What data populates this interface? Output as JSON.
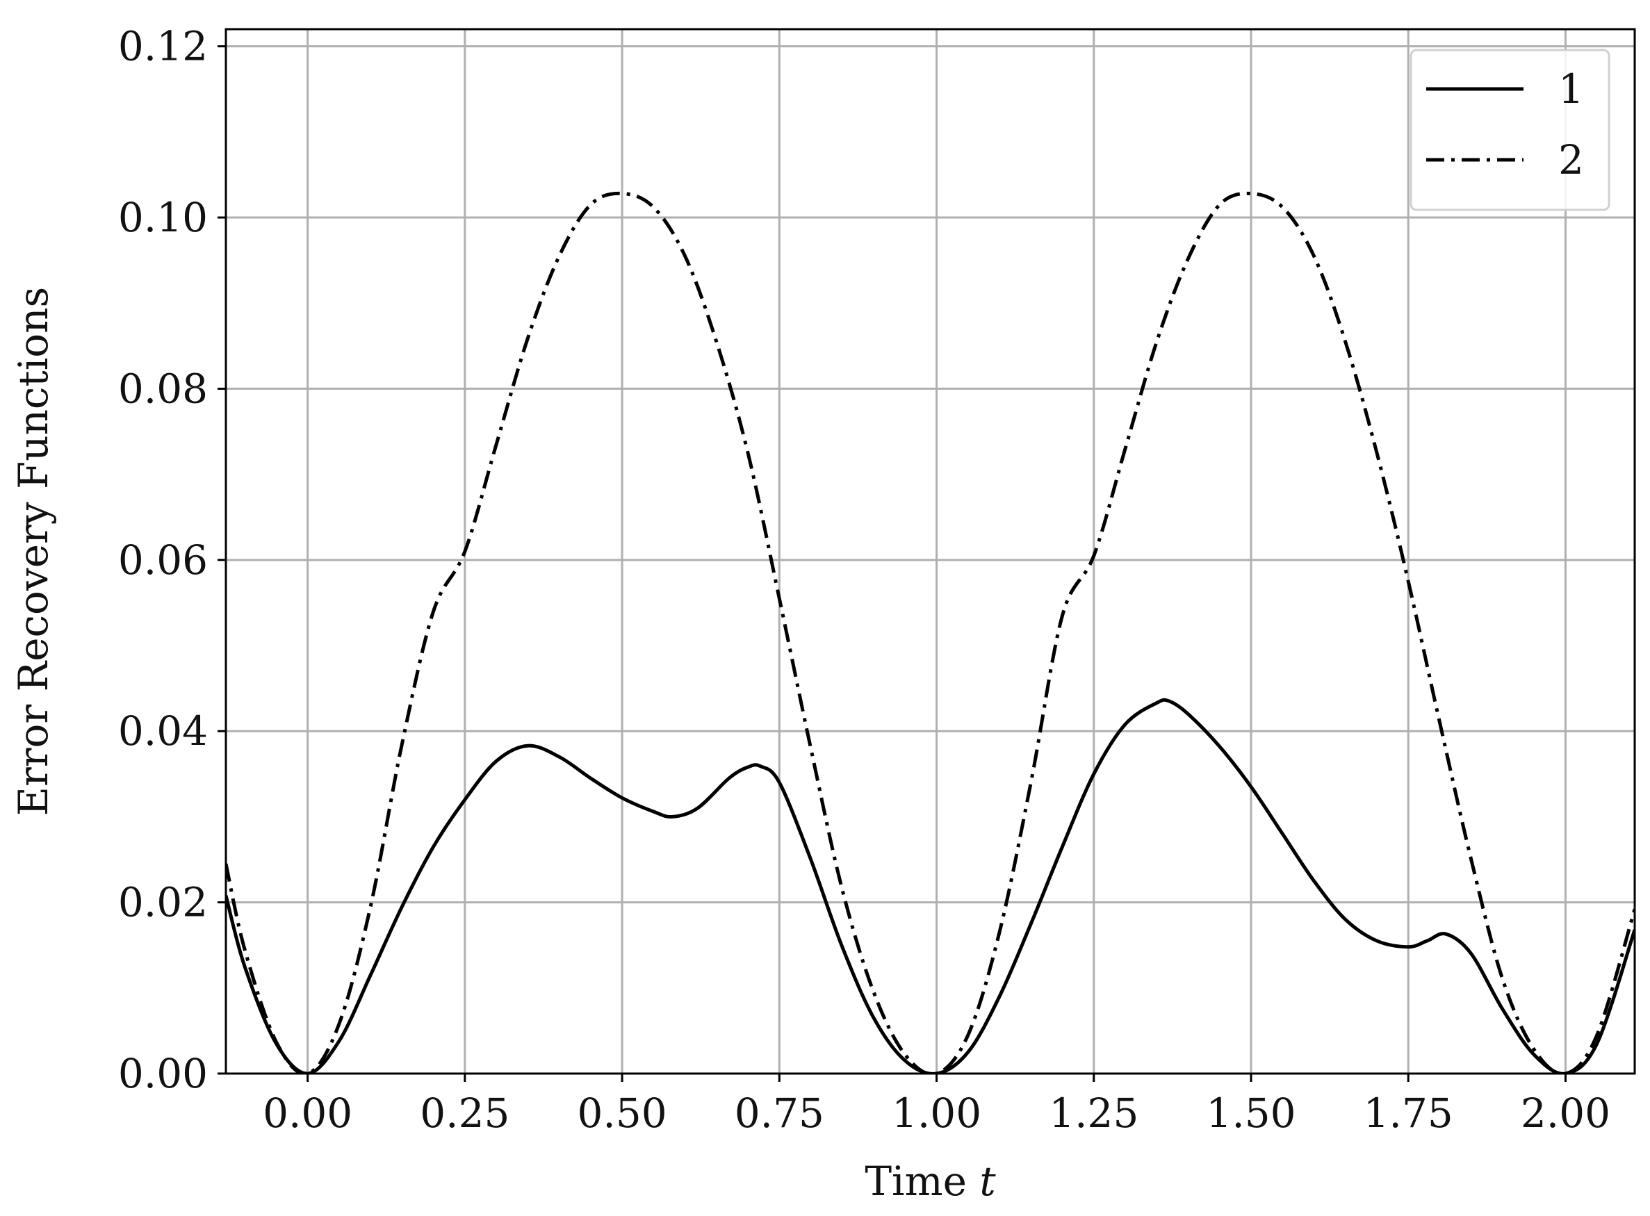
{
  "chart_data": {
    "type": "line",
    "title": "",
    "xlabel": "Time",
    "xlabel_var": "t",
    "ylabel": "Error Recovery Functions",
    "xlim": [
      -0.13,
      2.11
    ],
    "ylim": [
      0,
      0.122
    ],
    "xticks": [
      0.0,
      0.25,
      0.5,
      0.75,
      1.0,
      1.25,
      1.5,
      1.75,
      2.0
    ],
    "xtick_labels": [
      "0.00",
      "0.25",
      "0.50",
      "0.75",
      "1.00",
      "1.25",
      "1.50",
      "1.75",
      "2.00"
    ],
    "yticks": [
      0.0,
      0.02,
      0.04,
      0.06,
      0.08,
      0.1,
      0.12
    ],
    "ytick_labels": [
      "0.00",
      "0.02",
      "0.04",
      "0.06",
      "0.08",
      "0.10",
      "0.12"
    ],
    "grid": true,
    "legend": {
      "placement": "top-right",
      "entries": [
        "1",
        "2"
      ]
    },
    "series": [
      {
        "name": "1",
        "style": "solid",
        "color": "#000000",
        "x": [
          -0.13,
          -0.1,
          -0.05,
          0.0,
          0.05,
          0.1,
          0.15,
          0.2,
          0.25,
          0.3,
          0.35,
          0.4,
          0.45,
          0.5,
          0.55,
          0.58,
          0.62,
          0.67,
          0.7,
          0.72,
          0.75,
          0.8,
          0.85,
          0.9,
          0.95,
          1.0,
          1.05,
          1.1,
          1.15,
          1.2,
          1.25,
          1.3,
          1.35,
          1.37,
          1.4,
          1.45,
          1.5,
          1.55,
          1.6,
          1.65,
          1.7,
          1.75,
          1.78,
          1.81,
          1.85,
          1.9,
          1.95,
          2.0,
          2.05,
          2.11
        ],
        "y": [
          0.0208,
          0.0125,
          0.0035,
          0.0,
          0.0038,
          0.0115,
          0.0195,
          0.0265,
          0.032,
          0.0365,
          0.0383,
          0.037,
          0.0345,
          0.0322,
          0.0306,
          0.03,
          0.031,
          0.0345,
          0.0358,
          0.0359,
          0.034,
          0.025,
          0.0148,
          0.0065,
          0.0015,
          0.0,
          0.0025,
          0.009,
          0.0175,
          0.0265,
          0.035,
          0.0408,
          0.0433,
          0.0435,
          0.042,
          0.0382,
          0.0335,
          0.028,
          0.0225,
          0.018,
          0.0155,
          0.0148,
          0.0155,
          0.0163,
          0.014,
          0.0075,
          0.0022,
          0.0,
          0.0035,
          0.0168
        ]
      },
      {
        "name": "2",
        "style": "dash-dot",
        "color": "#000000",
        "x": [
          -0.13,
          -0.1,
          -0.05,
          0.0,
          0.05,
          0.1,
          0.15,
          0.2,
          0.25,
          0.3,
          0.35,
          0.4,
          0.45,
          0.5,
          0.55,
          0.6,
          0.65,
          0.7,
          0.75,
          0.8,
          0.85,
          0.9,
          0.95,
          1.0,
          1.05,
          1.1,
          1.15,
          1.2,
          1.25,
          1.3,
          1.35,
          1.4,
          1.45,
          1.5,
          1.55,
          1.6,
          1.65,
          1.7,
          1.75,
          1.8,
          1.85,
          1.9,
          1.95,
          2.0,
          2.05,
          2.11
        ],
        "y": [
          0.0245,
          0.0145,
          0.0037,
          0.0,
          0.0058,
          0.0195,
          0.0385,
          0.054,
          0.061,
          0.0735,
          0.0859,
          0.0955,
          0.1015,
          0.1028,
          0.1012,
          0.0955,
          0.0855,
          0.0725,
          0.0555,
          0.038,
          0.0215,
          0.0095,
          0.0022,
          0.0,
          0.0045,
          0.0165,
          0.034,
          0.0535,
          0.0605,
          0.073,
          0.0855,
          0.0952,
          0.1015,
          0.1028,
          0.1012,
          0.0955,
          0.0855,
          0.0725,
          0.0575,
          0.041,
          0.025,
          0.011,
          0.0028,
          0.0,
          0.0045,
          0.0192
        ]
      }
    ]
  }
}
